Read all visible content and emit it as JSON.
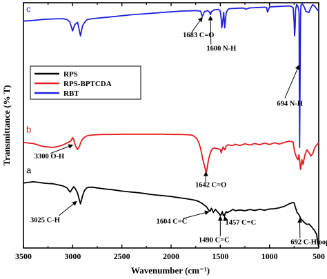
{
  "chart_data": {
    "type": "line",
    "title": "",
    "xlabel": "Wavenumber (cm⁻¹)",
    "ylabel": "Transmittance (% T)",
    "xlim": [
      3500,
      500
    ],
    "x_reversed": true,
    "x_ticks": [
      "3500",
      "3000",
      "2500",
      "2000",
      "1500",
      "1000",
      "500"
    ],
    "x_tick_values": [
      3500,
      3000,
      2500,
      2000,
      1500,
      1000,
      500
    ],
    "ylim": [
      0,
      100
    ],
    "y_ticks_shown": false,
    "grid": false,
    "legend": {
      "position": "top-left",
      "entries": [
        {
          "name": "RPS",
          "color": "#000000"
        },
        {
          "name": "RPS-BPTCDA",
          "color": "#e41a1c"
        },
        {
          "name": "RBT",
          "color": "#1f1fe0"
        }
      ]
    },
    "series": [
      {
        "name": "RBT",
        "label": "c",
        "color": "#1f1fe0",
        "x": [
          3500,
          3400,
          3300,
          3200,
          3100,
          3060,
          3030,
          3000,
          2980,
          2950,
          2940,
          2920,
          2900,
          2870,
          2850,
          2800,
          2700,
          2600,
          2500,
          2400,
          2300,
          2200,
          2100,
          2000,
          1900,
          1800,
          1750,
          1700,
          1683,
          1660,
          1630,
          1610,
          1600,
          1590,
          1560,
          1520,
          1500,
          1490,
          1485,
          1475,
          1465,
          1455,
          1440,
          1420,
          1400,
          1350,
          1300,
          1260,
          1240,
          1200,
          1150,
          1100,
          1050,
          1030,
          1020,
          1000,
          960,
          900,
          850,
          800,
          780,
          760,
          750,
          745,
          740,
          735,
          725,
          715,
          705,
          700,
          697,
          694,
          690,
          685,
          680,
          670,
          660,
          650,
          630,
          600,
          580,
          560,
          540,
          520,
          500
        ],
        "y": [
          92.5,
          92.8,
          93.2,
          93.4,
          93.5,
          93.2,
          92.2,
          88.5,
          91.0,
          92.0,
          90.2,
          86.5,
          90.6,
          92.5,
          93.2,
          93.5,
          93.9,
          94.3,
          94.7,
          95.1,
          95.4,
          95.7,
          96.0,
          96.3,
          96.6,
          96.7,
          96.8,
          96.6,
          94.4,
          96.4,
          96.8,
          96.2,
          95.2,
          96.4,
          97.1,
          97.3,
          96.6,
          93.2,
          89.8,
          92.4,
          96.1,
          89.8,
          96.0,
          97.4,
          97.6,
          97.7,
          97.8,
          97.8,
          97.4,
          97.9,
          98.0,
          98.1,
          98.2,
          98.0,
          96.2,
          98.3,
          98.4,
          98.5,
          98.6,
          98.7,
          98.5,
          98.0,
          92.5,
          86.5,
          90.0,
          97.2,
          99.2,
          98.8,
          97.5,
          96.0,
          66.0,
          41.0,
          66.0,
          94.0,
          99.0,
          99.5,
          99.2,
          98.5,
          96.5,
          96.0,
          98.0,
          99.2,
          98.5,
          97.5,
          96.5
        ]
      },
      {
        "name": "RPS-BPTCDA",
        "label": "b",
        "color": "#e41a1c",
        "x": [
          3500,
          3450,
          3400,
          3350,
          3300,
          3250,
          3200,
          3150,
          3100,
          3050,
          3020,
          3000,
          2990,
          2970,
          2950,
          2930,
          2910,
          2890,
          2870,
          2850,
          2800,
          2700,
          2600,
          2500,
          2400,
          2300,
          2200,
          2100,
          2000,
          1950,
          1900,
          1850,
          1800,
          1780,
          1760,
          1740,
          1720,
          1700,
          1680,
          1660,
          1650,
          1642,
          1630,
          1620,
          1600,
          1580,
          1560,
          1540,
          1500,
          1490,
          1480,
          1470,
          1455,
          1440,
          1420,
          1380,
          1350,
          1300,
          1250,
          1200,
          1150,
          1100,
          1050,
          1000,
          950,
          900,
          850,
          800,
          760,
          750,
          740,
          720,
          710,
          700,
          692,
          685,
          670,
          660,
          640,
          620,
          600,
          580,
          560,
          540,
          520,
          500
        ],
        "y": [
          43.0,
          42.8,
          42.6,
          42.0,
          41.4,
          41.2,
          41.0,
          41.4,
          42.0,
          43.0,
          43.6,
          45.0,
          44.2,
          41.5,
          40.2,
          41.6,
          43.8,
          44.8,
          45.4,
          45.8,
          46.1,
          46.3,
          46.3,
          46.4,
          46.4,
          46.4,
          46.4,
          46.4,
          46.3,
          46.3,
          46.3,
          46.2,
          46.1,
          45.9,
          45.4,
          44.6,
          43.2,
          40.6,
          36.5,
          33.3,
          31.8,
          30.8,
          33.5,
          36.0,
          39.0,
          40.5,
          40.8,
          40.6,
          40.2,
          38.8,
          40.4,
          41.2,
          40.0,
          41.6,
          42.1,
          41.7,
          42.3,
          41.8,
          42.5,
          42.0,
          42.6,
          42.1,
          42.8,
          42.2,
          42.9,
          42.4,
          43.0,
          43.6,
          43.2,
          40.5,
          38.5,
          36.5,
          36.0,
          38.0,
          35.0,
          32.0,
          36.0,
          34.0,
          38.0,
          40.0,
          39.0,
          37.5,
          38.5,
          41.0,
          42.0,
          43.0
        ]
      },
      {
        "name": "RPS",
        "label": "a",
        "color": "#000000",
        "x": [
          3500,
          3450,
          3400,
          3350,
          3300,
          3250,
          3200,
          3150,
          3100,
          3060,
          3040,
          3025,
          3010,
          2990,
          2970,
          2950,
          2930,
          2920,
          2900,
          2880,
          2860,
          2850,
          2800,
          2750,
          2700,
          2650,
          2600,
          2550,
          2500,
          2450,
          2400,
          2350,
          2300,
          2250,
          2200,
          2150,
          2100,
          2050,
          2000,
          1950,
          1900,
          1850,
          1800,
          1750,
          1720,
          1700,
          1680,
          1660,
          1640,
          1620,
          1604,
          1590,
          1570,
          1550,
          1530,
          1510,
          1500,
          1490,
          1480,
          1470,
          1460,
          1457,
          1450,
          1440,
          1430,
          1400,
          1370,
          1350,
          1300,
          1250,
          1200,
          1150,
          1100,
          1050,
          1000,
          950,
          900,
          850,
          800,
          760,
          750,
          740,
          720,
          700,
          692,
          680,
          660,
          640,
          620,
          600,
          580,
          560,
          540,
          520,
          510,
          500
        ],
        "y": [
          26.5,
          26.8,
          27.0,
          26.8,
          26.5,
          26.3,
          26.2,
          25.8,
          25.3,
          24.6,
          23.5,
          22.8,
          23.8,
          25.0,
          24.0,
          22.4,
          19.3,
          18.0,
          21.2,
          23.5,
          24.4,
          24.7,
          24.8,
          24.5,
          24.2,
          24.0,
          23.8,
          23.5,
          23.2,
          23.0,
          22.8,
          22.6,
          22.4,
          22.1,
          21.8,
          21.6,
          21.4,
          21.2,
          21.0,
          20.7,
          20.4,
          20.1,
          19.8,
          19.4,
          19.0,
          18.5,
          18.0,
          17.4,
          16.8,
          15.6,
          15.0,
          16.2,
          14.5,
          15.8,
          14.8,
          14.0,
          13.2,
          13.8,
          14.9,
          13.3,
          13.6,
          13.0,
          14.2,
          14.8,
          14.4,
          15.0,
          15.8,
          15.2,
          15.5,
          15.2,
          15.7,
          15.3,
          15.8,
          15.4,
          15.9,
          16.0,
          16.4,
          17.0,
          18.0,
          18.6,
          18.4,
          17.0,
          14.5,
          13.5,
          12.8,
          11.8,
          11.0,
          10.2,
          9.6,
          9.8,
          9.0,
          8.0,
          7.0,
          5.5,
          2.0,
          0.5
        ]
      }
    ],
    "panel_labels": [
      {
        "text": "c",
        "series": "RBT",
        "at_x": 3500,
        "at_y": 96.2,
        "color": "#1f1fe0"
      },
      {
        "text": "b",
        "series": "RPS-BPTCDA",
        "at_x": 3500,
        "at_y": 47.0,
        "color": "#e41a1c"
      },
      {
        "text": "a",
        "series": "RPS",
        "at_x": 3500,
        "at_y": 30.5,
        "color": "#000000"
      }
    ],
    "annotations": [
      {
        "text": "1683 C=O",
        "text_x": 1880,
        "text_y": 86.0,
        "arrow_from": [
          1790,
          88.0
        ],
        "arrow_to": [
          1683,
          94.0
        ]
      },
      {
        "text": "1600 N-H",
        "text_x": 1640,
        "text_y": 80.5,
        "arrow_from": [
          1595,
          83.0
        ],
        "arrow_to": [
          1600,
          94.5
        ]
      },
      {
        "text": "694 N-H",
        "text_x": 925,
        "text_y": 58.0,
        "arrow_from": [
          845,
          61.0
        ],
        "arrow_to": [
          700,
          74.5
        ]
      },
      {
        "text": "3300 O-H",
        "text_x": 3390,
        "text_y": 36.5,
        "arrow_from": [
          3225,
          38.6
        ],
        "arrow_to": [
          3000,
          42.0
        ]
      },
      {
        "text": "1642 C=O",
        "text_x": 1755,
        "text_y": 24.8,
        "arrow_from": [
          1650,
          27.0
        ],
        "arrow_to": [
          1645,
          31.0
        ]
      },
      {
        "text": "3025 C-H",
        "text_x": 3430,
        "text_y": 10.5,
        "arrow_from": [
          3140,
          13.2
        ],
        "arrow_to": [
          2960,
          19.0
        ]
      },
      {
        "text": "1604 C=C",
        "text_x": 2150,
        "text_y": 10.0,
        "arrow_from": [
          1880,
          12.0
        ],
        "arrow_to": [
          1615,
          14.8
        ]
      },
      {
        "text": "1490 C=C",
        "text_x": 1720,
        "text_y": 2.4,
        "arrow_from": [
          1500,
          4.8
        ],
        "arrow_to": [
          1500,
          12.8
        ]
      },
      {
        "text": "1457 C=C",
        "text_x": 1450,
        "text_y": 9.6,
        "arrow_from": [
          1445,
          11.2
        ],
        "arrow_to": [
          1457,
          12.8
        ]
      },
      {
        "text": "692 C-H oop",
        "text_x": 785,
        "text_y": 1.5,
        "arrow_from": [
          690,
          4.0
        ],
        "arrow_to": [
          693,
          12.0
        ]
      }
    ]
  }
}
